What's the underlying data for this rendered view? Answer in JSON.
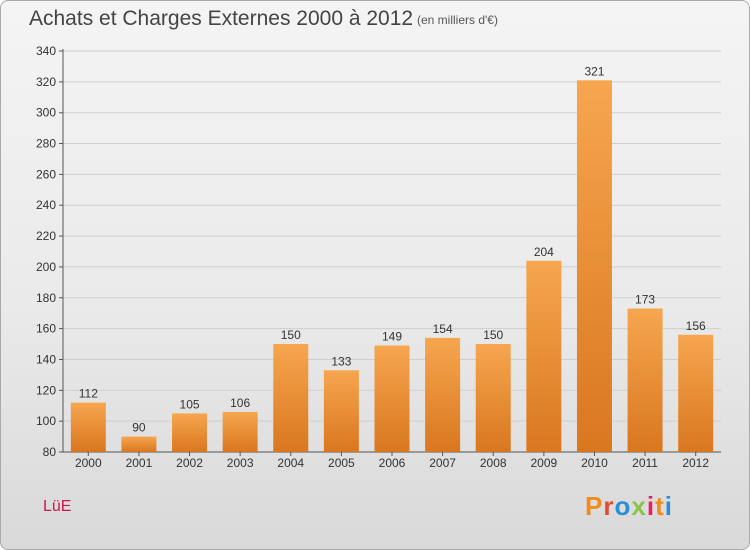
{
  "header": {
    "title": "Achats et Charges Externes 2000 à 2012",
    "subtitle": "(en milliers d'€)"
  },
  "footer": {
    "place": "LüE",
    "logo_text": "Proxiti"
  },
  "colors": {
    "bar_top": "#f6a64f",
    "bar_bottom": "#d9771f",
    "place": "#c8184b",
    "logo": [
      "#f28b1e",
      "#e64b2e",
      "#2a8fd4",
      "#8bc34a",
      "#e91e63",
      "#f28b1e",
      "#2a8fd4"
    ]
  },
  "chart_data": {
    "type": "bar",
    "title": "Achats et Charges Externes 2000 à 2012",
    "subtitle": "(en milliers d'€)",
    "categories": [
      "2000",
      "2001",
      "2002",
      "2003",
      "2004",
      "2005",
      "2006",
      "2007",
      "2008",
      "2009",
      "2010",
      "2011",
      "2012"
    ],
    "values": [
      112,
      90,
      105,
      106,
      150,
      133,
      149,
      154,
      150,
      204,
      321,
      173,
      156
    ],
    "ylim": [
      80,
      340
    ],
    "yticks": [
      80,
      100,
      120,
      140,
      160,
      180,
      200,
      220,
      240,
      260,
      280,
      300,
      320,
      340
    ],
    "grid": true,
    "data_labels": true
  }
}
